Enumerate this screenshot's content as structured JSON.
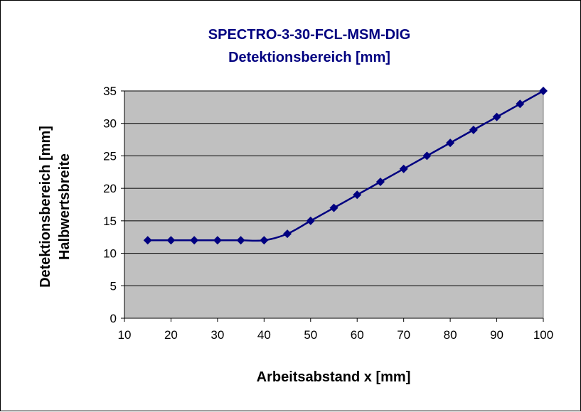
{
  "chart_data": {
    "type": "line",
    "title": [
      "SPECTRO-3-30-FCL-MSM-DIG",
      "Detektionsbereich [mm]"
    ],
    "xlabel": "Arbeitsabstand x [mm]",
    "ylabel": [
      "Detektionsbereich [mm]",
      "Halbwertsbreite"
    ],
    "xlim": [
      10,
      100
    ],
    "ylim": [
      0,
      35
    ],
    "xticks": [
      10,
      20,
      30,
      40,
      50,
      60,
      70,
      80,
      90,
      100
    ],
    "yticks": [
      0,
      5,
      10,
      15,
      20,
      25,
      30,
      35
    ],
    "grid": "horizontal",
    "smooth": true,
    "series": [
      {
        "x": [
          15,
          20,
          25,
          30,
          35,
          40,
          45,
          50,
          55,
          60,
          65,
          70,
          75,
          80,
          85,
          90,
          95,
          100
        ],
        "y": [
          12,
          12,
          12,
          12,
          12,
          12,
          13,
          15,
          17,
          19,
          21,
          23,
          25,
          27,
          29,
          31,
          33,
          35
        ]
      }
    ],
    "colors": {
      "series": "#000080",
      "plot_background": "#c0c0c0",
      "title": "#000080",
      "grid": "#000000"
    }
  }
}
